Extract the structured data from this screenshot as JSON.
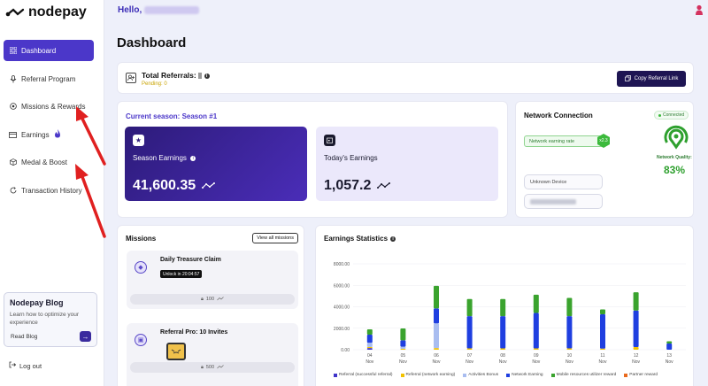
{
  "brand": {
    "name": "nodepay"
  },
  "header": {
    "greeting": "Hello,"
  },
  "sidebar": {
    "items": [
      {
        "label": "Dashboard",
        "icon": "grid-icon"
      },
      {
        "label": "Referral Program",
        "icon": "mic-icon"
      },
      {
        "label": "Missions & Rewards",
        "icon": "target-icon"
      },
      {
        "label": "Earnings",
        "icon": "wallet-icon"
      },
      {
        "label": "Medal & Boost",
        "icon": "cube-icon"
      },
      {
        "label": "Transaction History",
        "icon": "refresh-icon"
      }
    ],
    "blog": {
      "title": "Nodepay Blog",
      "description": "Learn how to optimize your experience",
      "link": "Read Blog"
    },
    "logout": "Log out"
  },
  "page": {
    "title": "Dashboard"
  },
  "referrals": {
    "title": "Total Referrals:",
    "pending": "Pending: 0",
    "copy_label": "Copy Referral Link"
  },
  "season": {
    "title": "Current season: Season #1",
    "season_earnings_label": "Season Earnings",
    "season_earnings_value": "41,600.35",
    "today_earnings_label": "Today's Earnings",
    "today_earnings_value": "1,057.2"
  },
  "network": {
    "title": "Network Connection",
    "status": "Connected",
    "rate_label": "Network earning rate",
    "rate_badge": "x2.3",
    "device_label": "Unknown Device",
    "quality_label": "Network Quality:",
    "quality_value": "83%",
    "quality": 0.83
  },
  "missions": {
    "title": "Missions",
    "view_all": "View all missions",
    "items": [
      {
        "name": "Daily Treasure Claim",
        "unlock": "Unlock in 20:04:57",
        "reward": "100"
      },
      {
        "name": "Referral Pro: 10 Invites",
        "reward": "500"
      }
    ]
  },
  "stats": {
    "title": "Earnings Statistics"
  },
  "colors": {
    "accent": "#4b37c9",
    "referral_successful": "#3f34c9",
    "referral_network": "#f2c200",
    "activities_bonus": "#a9bdf0",
    "network_earning": "#1f3fe0",
    "mobile_resources": "#3aa32e",
    "partner_reward": "#e96a1d"
  },
  "chart_data": {
    "type": "bar",
    "stacked": true,
    "title": "Earnings Statistics",
    "categories": [
      "04 Nov",
      "05 Nov",
      "06 Nov",
      "07 Nov",
      "08 Nov",
      "09 Nov",
      "10 Nov",
      "11 Nov",
      "12 Nov",
      "13 Nov"
    ],
    "x_tick_days": [
      "04",
      "05",
      "06",
      "07",
      "08",
      "09",
      "10",
      "11",
      "12",
      "13"
    ],
    "x_tick_month": "Nov",
    "y_ticks": [
      "8000.00",
      "6000.00",
      "4000.00",
      "2000.00",
      "0.00"
    ],
    "ylim": [
      0,
      8000
    ],
    "series": [
      {
        "name": "Referral (successful referral)",
        "color": "#3f34c9",
        "values": [
          150,
          0,
          0,
          0,
          0,
          0,
          0,
          0,
          0,
          0
        ]
      },
      {
        "name": "Referral (network earning)",
        "color": "#f2c200",
        "values": [
          100,
          80,
          150,
          120,
          120,
          120,
          120,
          100,
          250,
          0
        ]
      },
      {
        "name": "Activities Bonus",
        "color": "#a9bdf0",
        "values": [
          400,
          200,
          2300,
          0,
          0,
          0,
          0,
          0,
          0,
          0
        ]
      },
      {
        "name": "Network Earning",
        "color": "#1f3fe0",
        "values": [
          750,
          600,
          1400,
          3000,
          3000,
          3300,
          3000,
          3200,
          3400,
          580
        ]
      },
      {
        "name": "Mobile resources utilizer reward",
        "color": "#3aa32e",
        "values": [
          500,
          1100,
          2100,
          1600,
          1600,
          1700,
          1700,
          450,
          1700,
          200
        ]
      },
      {
        "name": "Partner reward",
        "color": "#e96a1d",
        "values": [
          0,
          0,
          0,
          0,
          0,
          0,
          0,
          0,
          0,
          0
        ]
      }
    ]
  }
}
